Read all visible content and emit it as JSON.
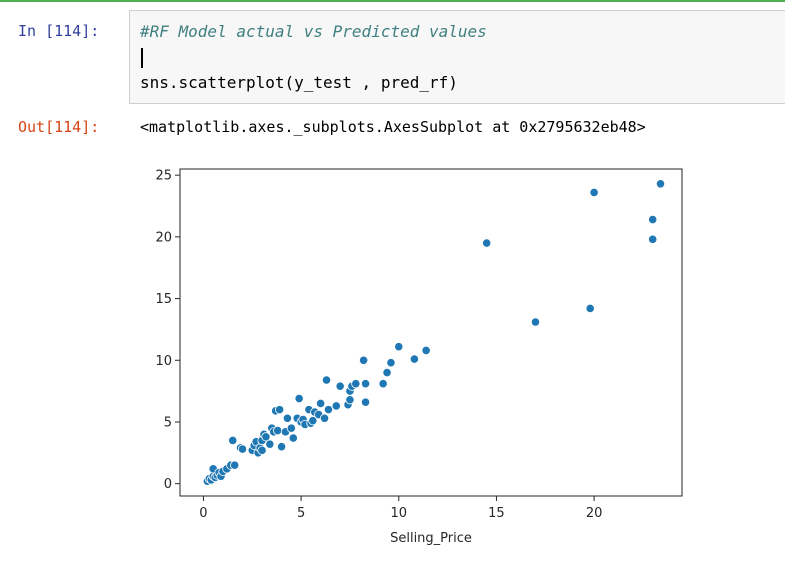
{
  "cell": {
    "in_prompt": "In [114]:",
    "out_prompt": "Out[114]:",
    "comment_line": "#RF Model actual vs Predicted values",
    "code_line": "sns.scatterplot(y_test , pred_rf)",
    "output_text": "<matplotlib.axes._subplots.AxesSubplot at 0x2795632eb48>"
  },
  "colors": {
    "accent_border": "#4caf50",
    "in_prompt": "#303f9f",
    "out_prompt": "#d84315",
    "comment": "#408080",
    "marker": "#1f77b4"
  },
  "chart_data": {
    "type": "scatter",
    "title": "",
    "xlabel": "Selling_Price",
    "ylabel": "",
    "xlim": [
      -1.2,
      24.5
    ],
    "ylim": [
      -1.0,
      25.5
    ],
    "xticks": [
      0,
      5,
      10,
      15,
      20
    ],
    "yticks": [
      0,
      5,
      10,
      15,
      20,
      25
    ],
    "grid": false,
    "points": [
      [
        0.2,
        0.2
      ],
      [
        0.3,
        0.4
      ],
      [
        0.4,
        0.3
      ],
      [
        0.5,
        0.6
      ],
      [
        0.6,
        0.5
      ],
      [
        0.7,
        0.7
      ],
      [
        0.5,
        1.2
      ],
      [
        0.8,
        0.9
      ],
      [
        0.9,
        0.6
      ],
      [
        1.0,
        1.0
      ],
      [
        1.2,
        1.2
      ],
      [
        1.4,
        1.5
      ],
      [
        1.6,
        1.5
      ],
      [
        1.5,
        3.5
      ],
      [
        1.9,
        2.9
      ],
      [
        2.0,
        2.8
      ],
      [
        2.5,
        2.7
      ],
      [
        2.6,
        3.1
      ],
      [
        2.7,
        3.4
      ],
      [
        2.8,
        2.5
      ],
      [
        2.9,
        2.9
      ],
      [
        3.0,
        3.5
      ],
      [
        3.1,
        4.0
      ],
      [
        3.2,
        3.8
      ],
      [
        3.0,
        2.7
      ],
      [
        3.4,
        3.2
      ],
      [
        3.5,
        4.5
      ],
      [
        3.6,
        4.2
      ],
      [
        3.7,
        5.9
      ],
      [
        3.8,
        4.3
      ],
      [
        3.9,
        6.0
      ],
      [
        4.0,
        3.0
      ],
      [
        4.2,
        4.2
      ],
      [
        4.3,
        5.3
      ],
      [
        4.5,
        4.5
      ],
      [
        4.6,
        3.7
      ],
      [
        4.8,
        5.3
      ],
      [
        4.9,
        6.9
      ],
      [
        5.0,
        5.0
      ],
      [
        5.1,
        5.2
      ],
      [
        5.2,
        4.8
      ],
      [
        5.4,
        6.0
      ],
      [
        5.5,
        4.9
      ],
      [
        5.6,
        5.1
      ],
      [
        5.7,
        5.8
      ],
      [
        5.9,
        5.6
      ],
      [
        6.0,
        6.5
      ],
      [
        6.2,
        5.3
      ],
      [
        6.3,
        8.4
      ],
      [
        6.4,
        6.0
      ],
      [
        6.8,
        6.3
      ],
      [
        7.0,
        7.9
      ],
      [
        7.4,
        6.4
      ],
      [
        7.5,
        6.8
      ],
      [
        7.5,
        7.5
      ],
      [
        7.6,
        7.9
      ],
      [
        7.8,
        8.1
      ],
      [
        8.3,
        6.6
      ],
      [
        8.3,
        8.1
      ],
      [
        8.2,
        10.0
      ],
      [
        9.2,
        8.1
      ],
      [
        9.4,
        9.0
      ],
      [
        9.6,
        9.8
      ],
      [
        10.0,
        11.1
      ],
      [
        10.8,
        10.1
      ],
      [
        11.4,
        10.8
      ],
      [
        14.5,
        19.5
      ],
      [
        17.0,
        13.1
      ],
      [
        19.8,
        14.2
      ],
      [
        20.0,
        23.6
      ],
      [
        23.0,
        21.4
      ],
      [
        23.0,
        19.8
      ],
      [
        23.4,
        24.3
      ]
    ]
  }
}
